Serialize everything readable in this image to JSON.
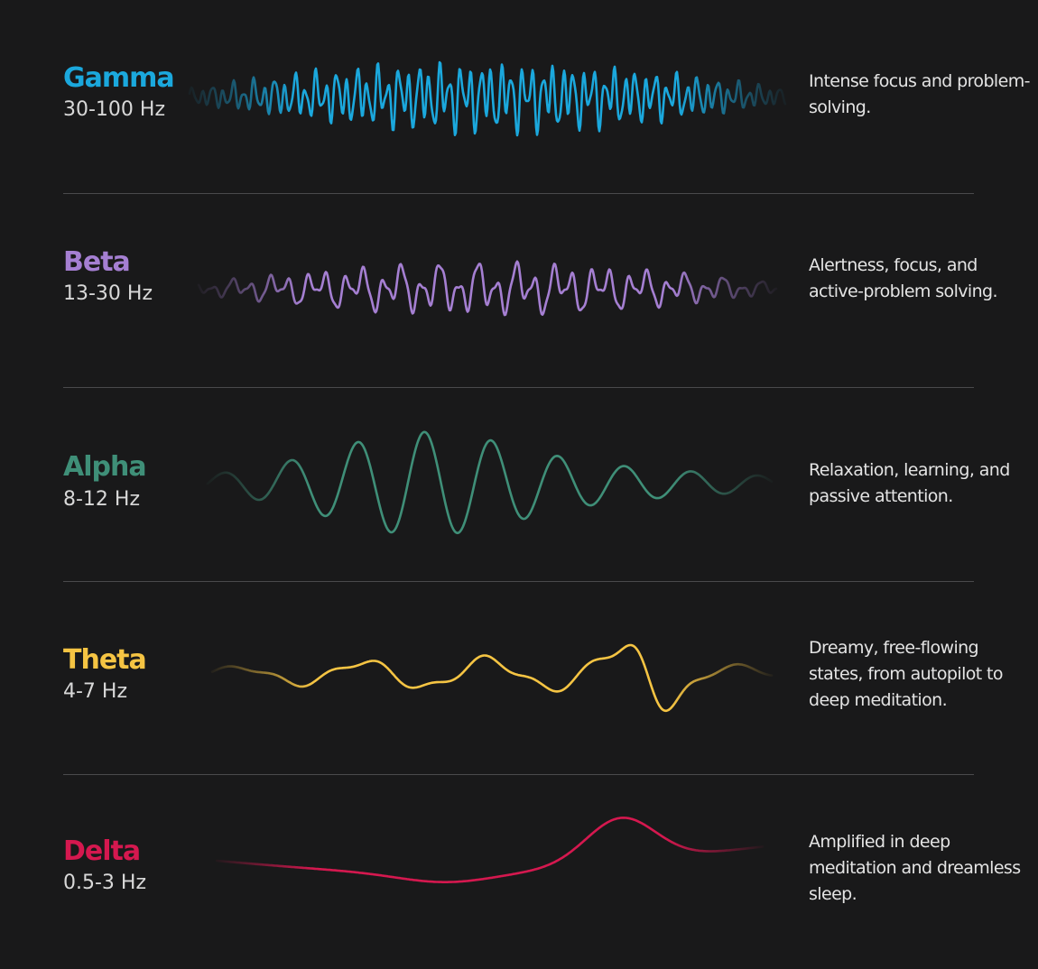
{
  "colors": {
    "background": "#19191a",
    "divider": "#4a4a4c",
    "text_secondary": "#d8d8d8"
  },
  "waves": [
    {
      "id": "gamma",
      "name": "Gamma",
      "range": "30-100 Hz",
      "description": "Intense focus and problem-solving.",
      "color": "#1ba8dd"
    },
    {
      "id": "beta",
      "name": "Beta",
      "range": "13-30 Hz",
      "description": "Alertness, focus, and active-problem solving.",
      "color": "#a57fd2"
    },
    {
      "id": "alpha",
      "name": "Alpha",
      "range": "8-12 Hz",
      "description": "Relaxation, learning, and passive attention.",
      "color": "#3f8f78"
    },
    {
      "id": "theta",
      "name": "Theta",
      "range": "4-7 Hz",
      "description": "Dreamy, free-flowing states, from autopilot to deep meditation.",
      "color": "#f5c443"
    },
    {
      "id": "delta",
      "name": "Delta",
      "range": "0.5-3 Hz",
      "description": "Amplified in deep meditation and dreamless sleep.",
      "color": "#d5184f"
    }
  ]
}
